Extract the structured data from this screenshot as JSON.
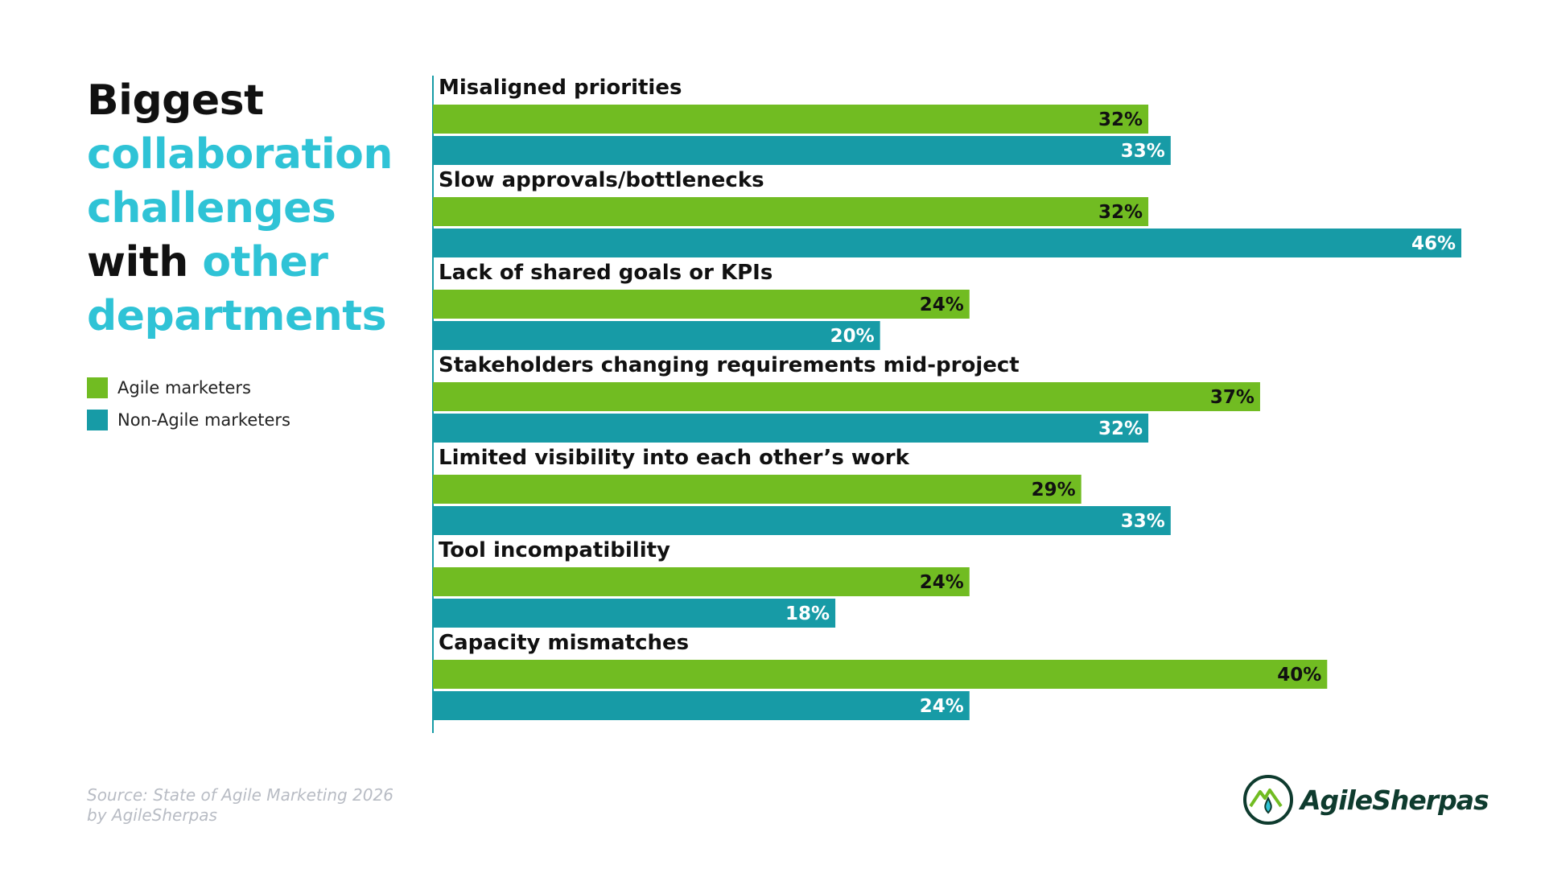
{
  "title": {
    "line1": "Biggest",
    "line2": "collaboration",
    "line3": "challenges",
    "line4_dark": "with",
    "line4_accent": "other",
    "line5": "departments"
  },
  "colors": {
    "agile": "#71bc22",
    "non_agile": "#179ba6",
    "accent_text": "#2fc3d6",
    "axis": "#179ba6"
  },
  "legend": {
    "agile": "Agile marketers",
    "non_agile": "Non-Agile marketers"
  },
  "chart_data": {
    "type": "bar",
    "orientation": "horizontal",
    "categories": [
      "Misaligned priorities",
      "Slow approvals/bottlenecks",
      "Lack of shared goals or KPIs",
      "Stakeholders changing requirements mid-project",
      "Limited visibility into each other’s work",
      "Tool incompatibility",
      "Capacity mismatches"
    ],
    "series": [
      {
        "name": "Agile marketers",
        "values": [
          32,
          32,
          24,
          37,
          29,
          24,
          40
        ]
      },
      {
        "name": "Non-Agile marketers",
        "values": [
          33,
          46,
          20,
          32,
          33,
          18,
          24
        ]
      }
    ],
    "value_suffix": "%",
    "xlim": [
      0,
      46
    ],
    "title": "Biggest collaboration challenges with other departments",
    "xlabel": "",
    "ylabel": "",
    "grid": false,
    "legend_position": "left"
  },
  "source": {
    "line1": "Source: State of Agile Marketing 2026",
    "line2": "by AgileSherpas"
  },
  "logo": {
    "text": "AgileSherpas"
  }
}
